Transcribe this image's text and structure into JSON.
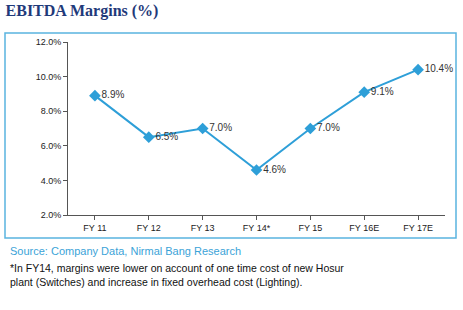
{
  "chart_data": {
    "type": "line",
    "title": "EBITDA Margins (%)",
    "categories": [
      "FY 11",
      "FY 12",
      "FY 13",
      "FY 14*",
      "FY 15",
      "FY 16E",
      "FY 17E"
    ],
    "values": [
      8.9,
      6.5,
      7.0,
      4.6,
      7.0,
      9.1,
      10.4
    ],
    "value_labels": [
      "8.9%",
      "6.5%",
      "7.0%",
      "4.6%",
      "7.0%",
      "9.1%",
      "10.4%"
    ],
    "data_labels": true,
    "color": "#2e9fd8",
    "marker": "diamond",
    "line_style": "solid",
    "ylim": [
      2,
      12
    ],
    "yticks": [
      {
        "value": 2,
        "label": "2.0%"
      },
      {
        "value": 4,
        "label": "4.0%"
      },
      {
        "value": 6,
        "label": "6.0%"
      },
      {
        "value": 8,
        "label": "8.0%"
      },
      {
        "value": 10,
        "label": "10.0%"
      },
      {
        "value": 12,
        "label": "12.0%"
      }
    ],
    "grid": false,
    "source": "Source: Company Data, Nirmal Bang Research",
    "note": [
      "*In FY14, margins were lower on account of one time cost of new Hosur",
      "plant (Switches) and increase in fixed overhead cost (Lighting)."
    ]
  }
}
